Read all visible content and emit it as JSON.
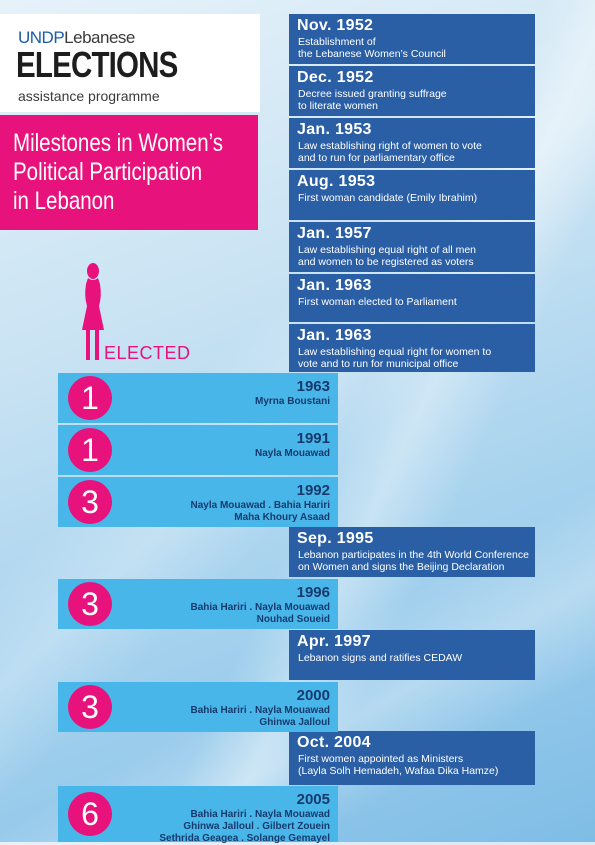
{
  "logo": {
    "org": "UNDP",
    "org_rest": "Lebanese",
    "main": "ELECTIONS",
    "sub": "assistance programme"
  },
  "title": {
    "line1": "Milestones in Women’s",
    "line2": "Political Participation",
    "line3": "in Lebanon"
  },
  "elected_label": "ELECTED",
  "colors": {
    "magenta": "#e8127c",
    "dark_blue": "#2a5fa6",
    "light_blue": "#49b6ea"
  },
  "milestones": [
    {
      "date": "Nov. 1952",
      "desc": [
        "Establishment of",
        "the Lebanese Women’s Council"
      ]
    },
    {
      "date": "Dec. 1952",
      "desc": [
        "Decree issued granting suffrage",
        "to literate women"
      ]
    },
    {
      "date": "Jan. 1953",
      "desc": [
        "Law establishing right of women to vote",
        "and to run for parliamentary office"
      ]
    },
    {
      "date": "Aug. 1953",
      "desc": [
        "First woman candidate (Emily Ibrahim)"
      ]
    },
    {
      "date": "Jan. 1957",
      "desc": [
        "Law establishing equal right of all men",
        "and women to be registered as voters"
      ]
    },
    {
      "date": "Jan. 1963",
      "desc": [
        "First woman elected to Parliament"
      ]
    },
    {
      "date": "Jan. 1963",
      "desc": [
        "Law establishing equal right for women to",
        "vote and to run for municipal office"
      ]
    },
    {
      "date": "Sep. 1995",
      "desc": [
        "Lebanon participates in the 4th World Conference",
        "on Women and signs the Beijing Declaration"
      ]
    },
    {
      "date": "Apr. 1997",
      "desc": [
        "Lebanon signs and ratifies CEDAW"
      ]
    },
    {
      "date": "Oct. 2004",
      "desc": [
        "First women appointed as Ministers",
        "(Layla Solh Hemadeh, Wafaa Dika Hamze)"
      ]
    }
  ],
  "elections": [
    {
      "count": "1",
      "year": "1963",
      "names": [
        "Myrna Boustani"
      ]
    },
    {
      "count": "1",
      "year": "1991",
      "names": [
        "Nayla Mouawad"
      ]
    },
    {
      "count": "3",
      "year": "1992",
      "names": [
        "Nayla Mouawad . Bahia Hariri",
        "Maha Khoury Asaad"
      ]
    },
    {
      "count": "3",
      "year": "1996",
      "names": [
        "Bahia Hariri . Nayla Mouawad",
        "Nouhad Soueid"
      ]
    },
    {
      "count": "3",
      "year": "2000",
      "names": [
        "Bahia Hariri . Nayla Mouawad",
        "Ghinwa Jalloul"
      ]
    },
    {
      "count": "6",
      "year": "2005",
      "names": [
        "Bahia Hariri . Nayla Mouawad",
        "Ghinwa Jalloul . Gilbert Zouein",
        "Sethrida Geagea . Solange Gemayel"
      ]
    }
  ]
}
